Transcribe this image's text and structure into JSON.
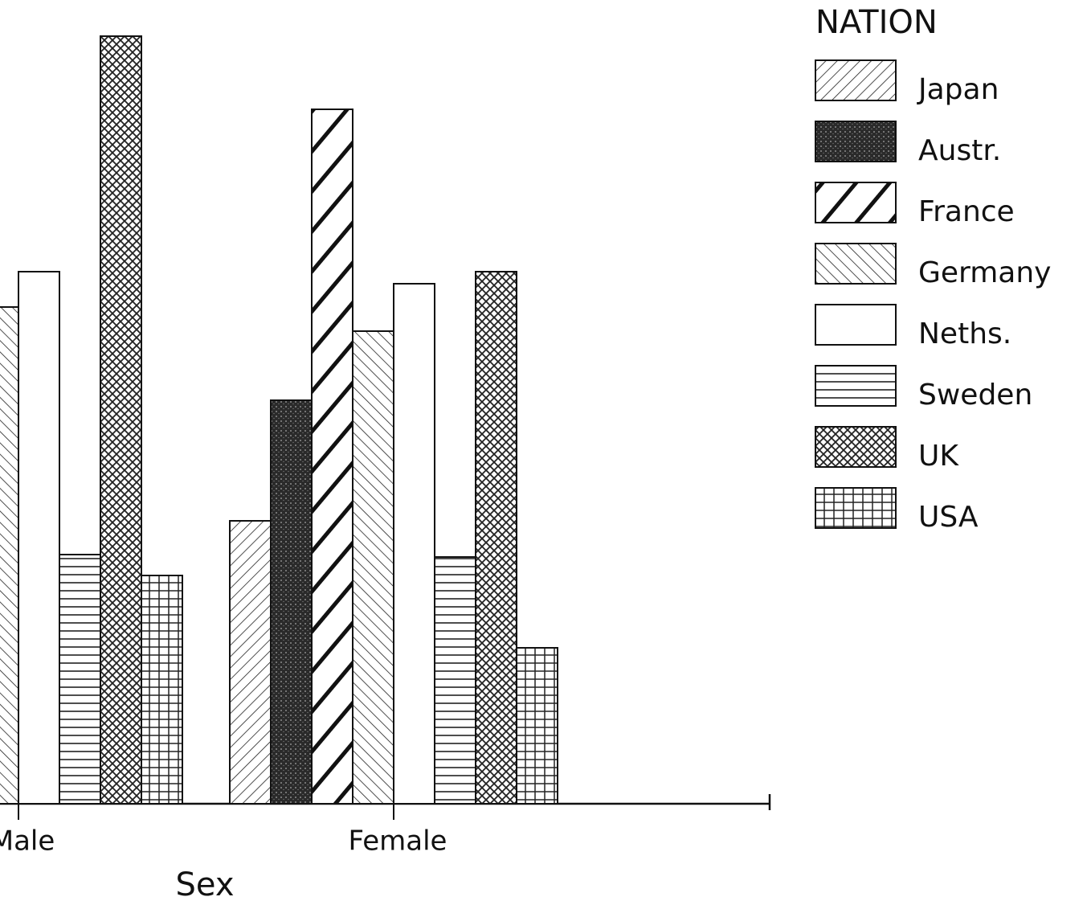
{
  "chart_data": {
    "type": "bar",
    "legend_title": "NATION",
    "x_label": "Sex",
    "categories": [
      "Male",
      "Female"
    ],
    "ylim": [
      0,
      100
    ],
    "series": [
      {
        "name": "Japan",
        "values": [
          null,
          35.2
        ]
      },
      {
        "name": "Austr.",
        "values": [
          null,
          50.2
        ]
      },
      {
        "name": "France",
        "values": [
          null,
          86.4
        ]
      },
      {
        "name": "Germany",
        "values": [
          61.8,
          58.8
        ]
      },
      {
        "name": "Neths.",
        "values": [
          66.2,
          64.7
        ]
      },
      {
        "name": "Sweden",
        "values": [
          31.0,
          30.7
        ]
      },
      {
        "name": "UK",
        "values": [
          95.5,
          66.2
        ]
      },
      {
        "name": "USA",
        "values": [
          28.4,
          19.4
        ]
      }
    ]
  }
}
